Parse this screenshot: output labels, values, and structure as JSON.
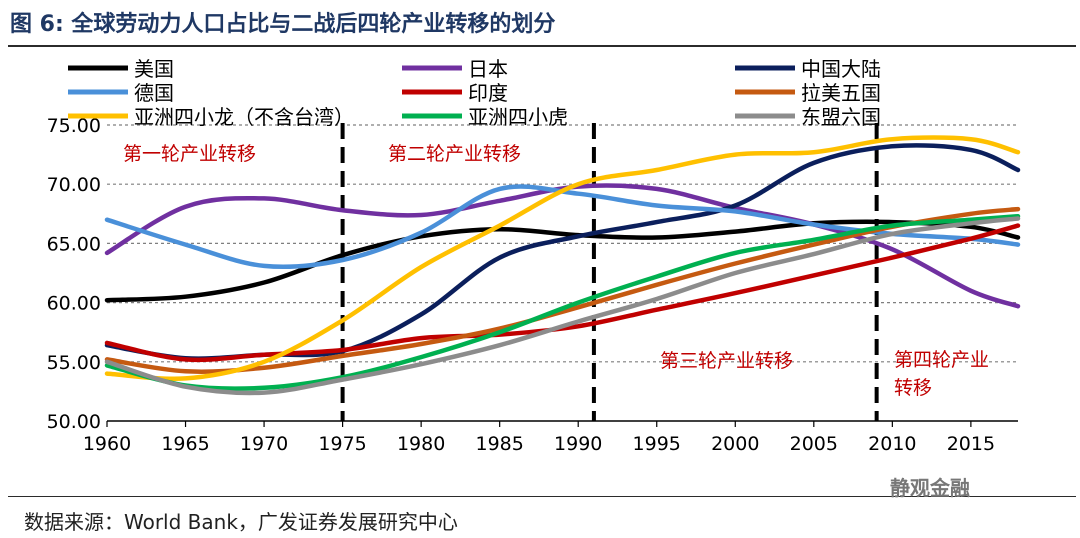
{
  "chart_data": {
    "type": "line",
    "title": "图 6:  全球劳动力人口占比与二战后四轮产业转移的划分",
    "xlabel": "",
    "ylabel": "",
    "xlim": [
      1960,
      2018
    ],
    "ylim": [
      50,
      75
    ],
    "x_ticks": [
      "1960",
      "1965",
      "1970",
      "1975",
      "1980",
      "1985",
      "1990",
      "1995",
      "2000",
      "2005",
      "2010",
      "2015"
    ],
    "y_ticks": [
      "50.00",
      "55.00",
      "60.00",
      "65.00",
      "70.00",
      "75.00"
    ],
    "x": [
      1960,
      1965,
      1970,
      1975,
      1980,
      1985,
      1990,
      1995,
      2000,
      2005,
      2010,
      2015,
      2018
    ],
    "series": [
      {
        "name": "美国",
        "color": "#000000",
        "values": [
          60.2,
          60.5,
          61.7,
          64.0,
          65.6,
          66.2,
          65.7,
          65.5,
          66.0,
          66.7,
          66.8,
          66.4,
          65.5
        ]
      },
      {
        "name": "日本",
        "color": "#7030a0",
        "values": [
          64.2,
          68.1,
          68.8,
          67.8,
          67.4,
          68.6,
          69.8,
          69.6,
          68.0,
          66.6,
          64.5,
          61.0,
          59.7
        ]
      },
      {
        "name": "中国大陆",
        "color": "#0b1f5c",
        "values": [
          56.4,
          55.3,
          55.6,
          55.9,
          59.0,
          63.8,
          65.6,
          66.8,
          68.2,
          71.8,
          73.2,
          72.9,
          71.2
        ]
      },
      {
        "name": "德国",
        "color": "#4a90d9",
        "values": [
          67.0,
          64.9,
          63.1,
          63.6,
          65.9,
          69.6,
          69.2,
          68.2,
          67.7,
          66.6,
          65.8,
          65.4,
          64.9
        ]
      },
      {
        "name": "印度",
        "color": "#c00000",
        "values": [
          56.6,
          55.2,
          55.6,
          56.0,
          57.0,
          57.3,
          58.0,
          59.4,
          60.8,
          62.3,
          63.8,
          65.4,
          66.5
        ]
      },
      {
        "name": "拉美五国",
        "color": "#c55a11",
        "values": [
          55.2,
          54.2,
          54.5,
          55.5,
          56.5,
          57.8,
          59.6,
          61.5,
          63.3,
          64.9,
          66.4,
          67.5,
          67.9
        ]
      },
      {
        "name": "亚洲四小龙（不含台湾）",
        "color": "#ffc000",
        "values": [
          54.0,
          53.6,
          55.0,
          58.5,
          63.0,
          66.5,
          70.0,
          71.2,
          72.5,
          72.7,
          73.8,
          73.8,
          72.7
        ]
      },
      {
        "name": "亚洲四小虎",
        "color": "#00b050",
        "values": [
          54.7,
          53.0,
          52.8,
          53.7,
          55.4,
          57.5,
          60.0,
          62.2,
          64.2,
          65.3,
          66.5,
          67.0,
          67.3
        ]
      },
      {
        "name": "东盟六国",
        "color": "#8c8c8c",
        "values": [
          55.0,
          52.9,
          52.4,
          53.5,
          54.8,
          56.4,
          58.4,
          60.3,
          62.5,
          64.1,
          65.8,
          66.7,
          67.1
        ]
      }
    ],
    "transitions": [
      1975,
      1991,
      2009
    ],
    "annotations": {
      "phase1": "第一轮产业转移",
      "phase2": "第二轮产业转移",
      "phase3": "第三轮产业转移",
      "phase4_line1": "第四轮产业",
      "phase4_line2": "转移"
    },
    "source": "数据来源：World Bank，广发证券发展研究中心",
    "watermark": "静观金融"
  }
}
